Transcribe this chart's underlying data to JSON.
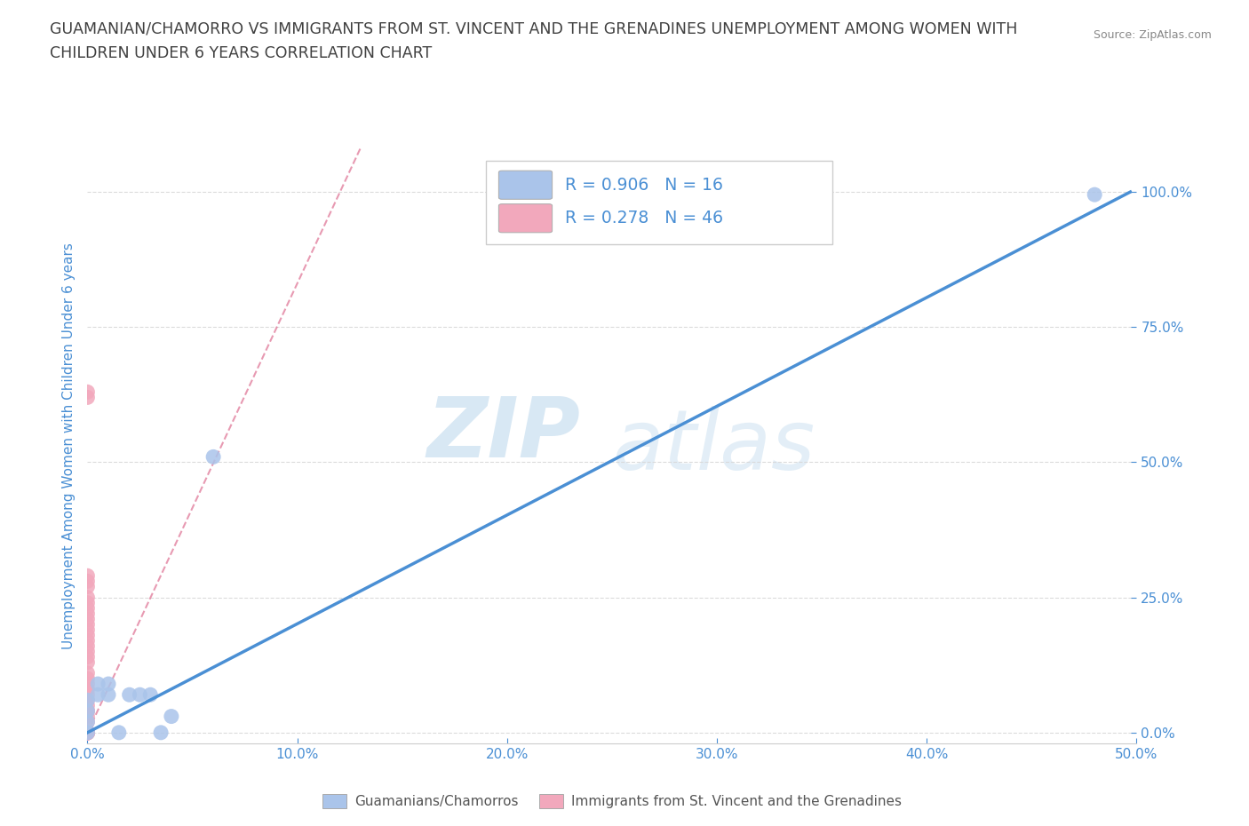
{
  "title_line1": "GUAMANIAN/CHAMORRO VS IMMIGRANTS FROM ST. VINCENT AND THE GRENADINES UNEMPLOYMENT AMONG WOMEN WITH",
  "title_line2": "CHILDREN UNDER 6 YEARS CORRELATION CHART",
  "source": "Source: ZipAtlas.com",
  "ylabel": "Unemployment Among Women with Children Under 6 years",
  "watermark_zip": "ZIP",
  "watermark_atlas": "atlas",
  "blue_label": "Guamanians/Chamorros",
  "pink_label": "Immigrants from St. Vincent and the Grenadines",
  "blue_R": "R = 0.906",
  "blue_N": "N = 16",
  "pink_R": "R = 0.278",
  "pink_N": "N = 46",
  "xlim": [
    0.0,
    0.5
  ],
  "ylim": [
    -0.02,
    1.08
  ],
  "xticks": [
    0.0,
    0.1,
    0.2,
    0.3,
    0.4,
    0.5
  ],
  "yticks": [
    0.0,
    0.25,
    0.5,
    0.75,
    1.0
  ],
  "xtick_labels": [
    "0.0%",
    "10.0%",
    "20.0%",
    "30.0%",
    "40.0%",
    "50.0%"
  ],
  "ytick_labels": [
    "0.0%",
    "25.0%",
    "50.0%",
    "75.0%",
    "100.0%"
  ],
  "blue_color": "#aac4ea",
  "pink_color": "#f2a8bc",
  "blue_line_color": "#4a8fd4",
  "pink_line_color": "#e07898",
  "blue_scatter_x": [
    0.0,
    0.0,
    0.0,
    0.0,
    0.005,
    0.005,
    0.01,
    0.01,
    0.015,
    0.02,
    0.025,
    0.03,
    0.035,
    0.04,
    0.06,
    0.48
  ],
  "blue_scatter_y": [
    0.0,
    0.02,
    0.04,
    0.06,
    0.07,
    0.09,
    0.07,
    0.09,
    0.0,
    0.07,
    0.07,
    0.07,
    0.0,
    0.03,
    0.51,
    0.995
  ],
  "pink_scatter_x": [
    0.0,
    0.0,
    0.0,
    0.0,
    0.0,
    0.0,
    0.0,
    0.0,
    0.0,
    0.0,
    0.0,
    0.0,
    0.0,
    0.0,
    0.0,
    0.0,
    0.0,
    0.0,
    0.0,
    0.0,
    0.0,
    0.0,
    0.0,
    0.0,
    0.0,
    0.0,
    0.0,
    0.0,
    0.0,
    0.0,
    0.0,
    0.0,
    0.0,
    0.0,
    0.0,
    0.0,
    0.0,
    0.0,
    0.0,
    0.0,
    0.0,
    0.0,
    0.0,
    0.0,
    0.0,
    0.0
  ],
  "pink_scatter_y": [
    0.0,
    0.0,
    0.0,
    0.0,
    0.0,
    0.0,
    0.0,
    0.0,
    0.0,
    0.0,
    0.0,
    0.0,
    0.0,
    0.0,
    0.0,
    0.0,
    0.0,
    0.02,
    0.03,
    0.04,
    0.04,
    0.05,
    0.06,
    0.07,
    0.08,
    0.09,
    0.1,
    0.11,
    0.13,
    0.14,
    0.15,
    0.16,
    0.17,
    0.18,
    0.19,
    0.2,
    0.21,
    0.22,
    0.23,
    0.24,
    0.25,
    0.27,
    0.28,
    0.29,
    0.62,
    0.63
  ],
  "blue_line_x0": 0.0,
  "blue_line_y0": 0.0,
  "blue_line_x1": 0.497,
  "blue_line_y1": 1.0,
  "pink_line_x0": 0.0,
  "pink_line_y0": 0.0,
  "pink_line_x1": 0.13,
  "pink_line_y1": 1.08,
  "background_color": "#ffffff",
  "title_color": "#404040",
  "axis_color": "#4a8fd4",
  "grid_color": "#d8d8d8",
  "legend_R_color": "#4a8fd4",
  "legend_N_color": "#404040"
}
